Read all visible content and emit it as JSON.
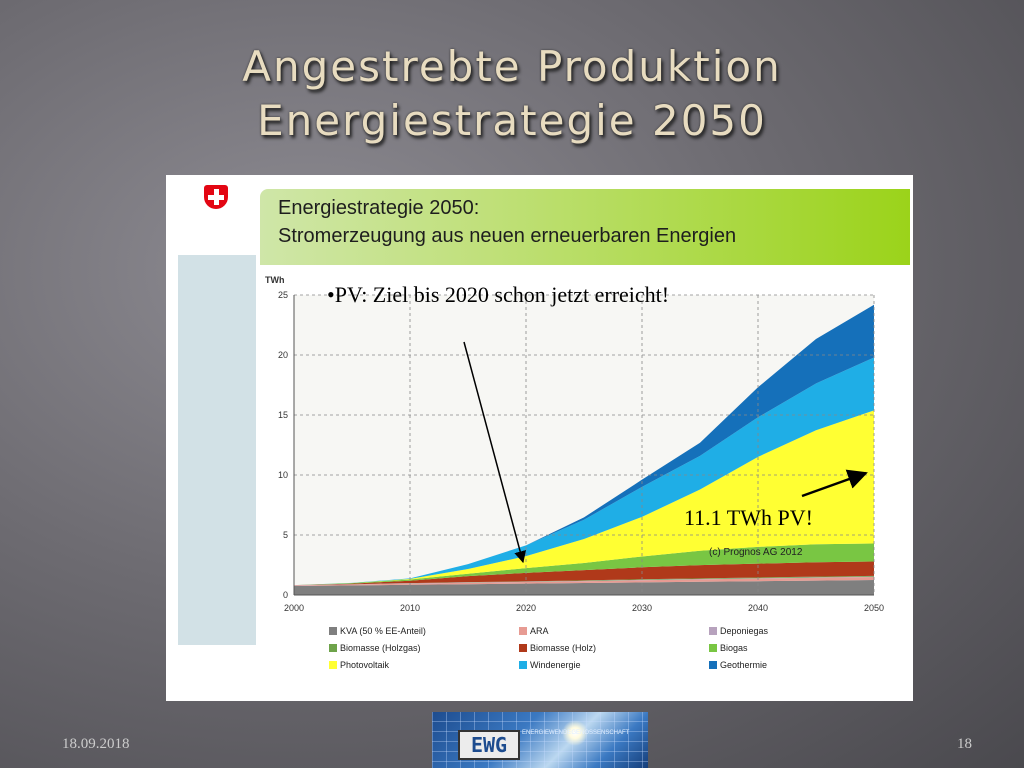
{
  "slide": {
    "title_line1": "Angestrebte Produktion",
    "title_line2": "Energiestrategie 2050",
    "date": "18.09.2018",
    "page_number": "18",
    "logo_text": "EWG",
    "logo_subtext": "ENERGIEWENDEGENOSSENSCHAFT"
  },
  "panel": {
    "header_line1": "Energiestrategie 2050:",
    "header_line2": "Stromerzeugung aus neuen erneuerbaren Energien",
    "annotation_pv": "•PV: Ziel bis 2020 schon jetzt erreicht!",
    "annotation_twh": "11.1 TWh PV!"
  },
  "colors": {
    "kva": "#7f7f7f",
    "ara": "#e79b93",
    "deponiegas": "#b7a2bd",
    "biomasse_holzgas": "#6ea34a",
    "biomasse_holz": "#b0391a",
    "biogas": "#79c643",
    "photovoltaik": "#ffff33",
    "windenergie": "#1faee6",
    "geothermie": "#1570ba",
    "header_green": "#9bd31a"
  },
  "chart_data": {
    "type": "area",
    "stacked": true,
    "ylabel": "TWh",
    "xlabel": "",
    "xlim": [
      2000,
      2050
    ],
    "ylim": [
      0,
      25
    ],
    "xticks": [
      2000,
      2010,
      2020,
      2030,
      2040,
      2050
    ],
    "yticks": [
      0,
      5,
      10,
      15,
      20,
      25
    ],
    "grid": true,
    "credit": "(c) Prognos  AG 2012",
    "x": [
      2000,
      2005,
      2010,
      2015,
      2020,
      2025,
      2030,
      2035,
      2040,
      2045,
      2050
    ],
    "series": [
      {
        "name": "KVA (50 % EE-Anteil)",
        "color": "#7f7f7f",
        "values": [
          0.75,
          0.8,
          0.85,
          0.9,
          0.95,
          1.0,
          1.05,
          1.1,
          1.15,
          1.2,
          1.25
        ]
      },
      {
        "name": "ARA",
        "color": "#e79b93",
        "values": [
          0.05,
          0.08,
          0.1,
          0.12,
          0.13,
          0.15,
          0.18,
          0.2,
          0.22,
          0.24,
          0.25
        ]
      },
      {
        "name": "Deponiegas",
        "color": "#b7a2bd",
        "values": [
          0.02,
          0.02,
          0.03,
          0.03,
          0.03,
          0.03,
          0.03,
          0.03,
          0.03,
          0.03,
          0.03
        ]
      },
      {
        "name": "Biomasse (Holzgas)",
        "color": "#6ea34a",
        "values": [
          0.0,
          0.0,
          0.01,
          0.02,
          0.03,
          0.04,
          0.05,
          0.06,
          0.06,
          0.06,
          0.06
        ]
      },
      {
        "name": "Biomasse (Holz)",
        "color": "#b0391a",
        "values": [
          0.0,
          0.05,
          0.2,
          0.5,
          0.7,
          0.85,
          1.0,
          1.1,
          1.15,
          1.2,
          1.2
        ]
      },
      {
        "name": "Biogas",
        "color": "#79c643",
        "values": [
          0.0,
          0.05,
          0.1,
          0.2,
          0.4,
          0.6,
          0.9,
          1.2,
          1.4,
          1.5,
          1.5
        ]
      },
      {
        "name": "Photovoltaik",
        "color": "#ffff33",
        "values": [
          0.0,
          0.0,
          0.05,
          0.4,
          1.0,
          2.0,
          3.3,
          5.1,
          7.5,
          9.5,
          11.1
        ]
      },
      {
        "name": "Windenergie",
        "color": "#1faee6",
        "values": [
          0.0,
          0.01,
          0.05,
          0.4,
          0.9,
          1.6,
          2.5,
          2.8,
          3.3,
          3.9,
          4.4
        ]
      },
      {
        "name": "Geothermie",
        "color": "#1570ba",
        "values": [
          0.0,
          0.0,
          0.0,
          0.0,
          0.0,
          0.2,
          0.6,
          1.1,
          2.5,
          3.7,
          4.4
        ]
      }
    ],
    "legend_position": "bottom",
    "legend": [
      {
        "label": "KVA (50 % EE-Anteil)",
        "color": "#7f7f7f"
      },
      {
        "label": "ARA",
        "color": "#e79b93"
      },
      {
        "label": "Deponiegas",
        "color": "#b7a2bd"
      },
      {
        "label": "Biomasse (Holzgas)",
        "color": "#6ea34a"
      },
      {
        "label": "Biomasse (Holz)",
        "color": "#b0391a"
      },
      {
        "label": "Biogas",
        "color": "#79c643"
      },
      {
        "label": "Photovoltaik",
        "color": "#ffff33"
      },
      {
        "label": "Windenergie",
        "color": "#1faee6"
      },
      {
        "label": "Geothermie",
        "color": "#1570ba"
      }
    ]
  }
}
